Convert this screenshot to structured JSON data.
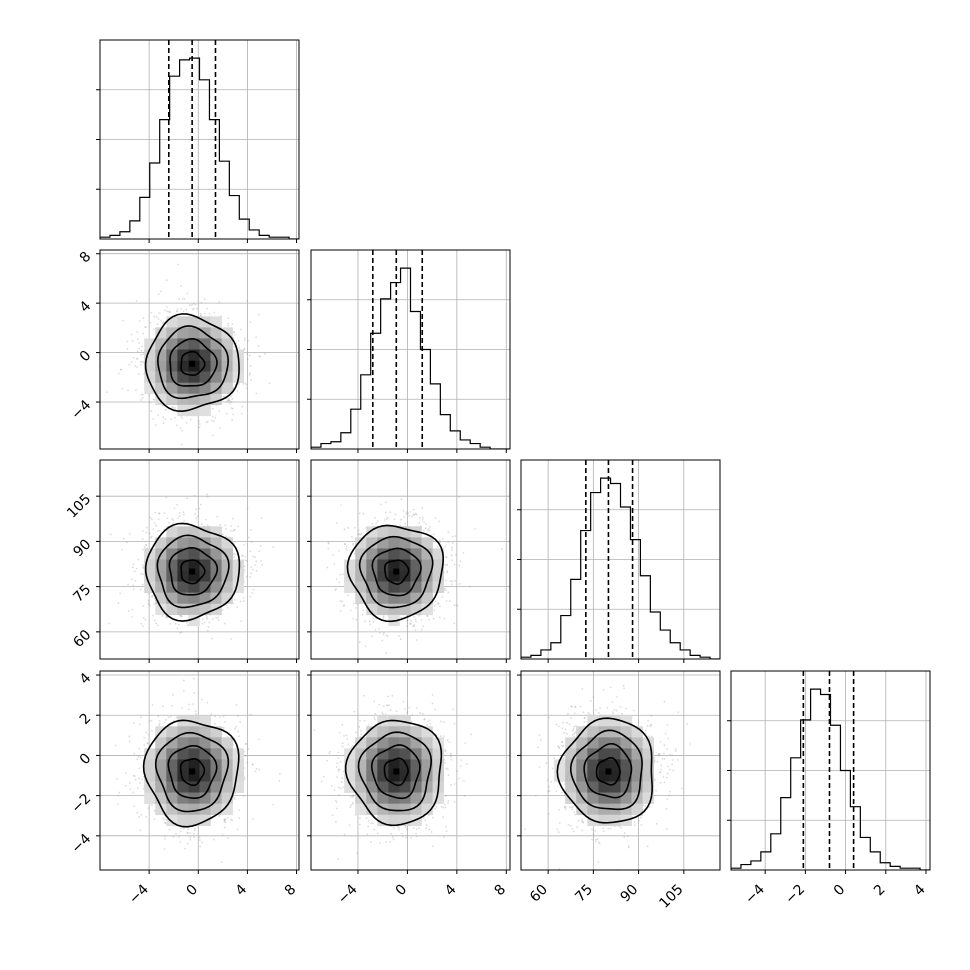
{
  "chart_data": {
    "type": "corner",
    "n_params": 4,
    "colors": {
      "line": "#000000",
      "grid": "#b0b0b0",
      "points": "#9a9a9a",
      "density_dark": "#1a1a1a",
      "density_light": "#ffffff"
    },
    "grid": true,
    "parameters": [
      {
        "mean": -0.5,
        "sd": 1.9,
        "range": [
          -8.0,
          8.2
        ],
        "ticks": [
          -4,
          0,
          4,
          8
        ],
        "tick_labels": [
          "−4",
          "0",
          "4",
          "8"
        ],
        "quantiles": [
          -2.4,
          -0.5,
          1.4
        ],
        "hist_edges_range": [
          -8.0,
          8.2
        ],
        "hist_counts": [
          1,
          2,
          4,
          10,
          23,
          42,
          66,
          90,
          99,
          100,
          88,
          66,
          43,
          24,
          11,
          5,
          2,
          1,
          1,
          0
        ]
      },
      {
        "mean": -0.9,
        "sd": 1.9,
        "range": [
          -7.8,
          8.3
        ],
        "ticks": [
          -4,
          0,
          4,
          8
        ],
        "tick_labels": [
          "−4",
          "0",
          "4",
          "8"
        ],
        "quantiles": [
          -2.8,
          -0.9,
          1.2
        ],
        "hist_edges_range": [
          -7.8,
          8.3
        ],
        "hist_counts": [
          1,
          3,
          4,
          9,
          22,
          41,
          64,
          83,
          92,
          100,
          76,
          55,
          36,
          19,
          10,
          5,
          3,
          1,
          0,
          0
        ]
      },
      {
        "mean": 80.0,
        "sd": 7.8,
        "range": [
          51.0,
          117.0
        ],
        "ticks": [
          60,
          75,
          90,
          105
        ],
        "tick_labels": [
          "60",
          "75",
          "90",
          "105"
        ],
        "quantiles": [
          72.5,
          80.0,
          88.0
        ],
        "hist_edges_range": [
          51.0,
          117.0
        ],
        "hist_counts": [
          1,
          2,
          5,
          9,
          24,
          44,
          71,
          92,
          100,
          97,
          84,
          66,
          46,
          26,
          16,
          9,
          5,
          2,
          1,
          0
        ]
      },
      {
        "mean": -0.8,
        "sd": 1.3,
        "range": [
          -5.7,
          4.2
        ],
        "ticks": [
          -4,
          -2,
          0,
          2,
          4
        ],
        "tick_labels": [
          "−4",
          "−2",
          "0",
          "2",
          "4"
        ],
        "quantiles": [
          -2.1,
          -0.8,
          0.4
        ],
        "hist_edges_range": [
          -5.7,
          4.2
        ],
        "hist_counts": [
          1,
          3,
          5,
          10,
          20,
          40,
          62,
          83,
          100,
          97,
          80,
          55,
          35,
          18,
          10,
          4,
          2,
          1,
          1,
          0
        ]
      }
    ],
    "contour_levels_sigma": [
      0.5,
      1.0,
      1.5,
      2.0
    ],
    "xlabels": [],
    "ylabels": [],
    "title": ""
  }
}
